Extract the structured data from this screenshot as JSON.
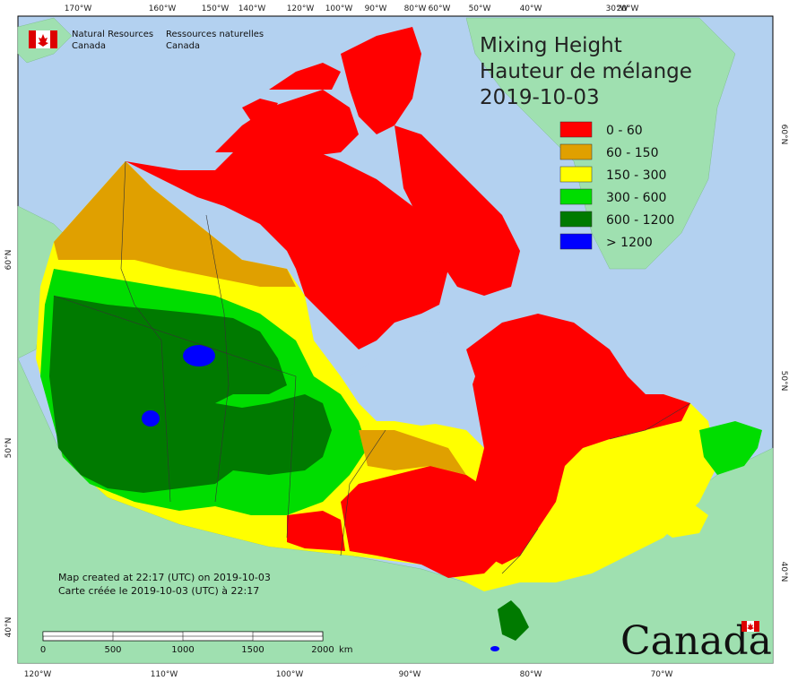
{
  "title": {
    "line1": "Mixing Height",
    "line2": "Hauteur de mélange",
    "date": "2019-10-03"
  },
  "agency": {
    "en_line1": "Natural Resources",
    "en_line2": "Canada",
    "fr_line1": "Ressources naturelles",
    "fr_line2": "Canada"
  },
  "legend": [
    {
      "label": "0 - 60",
      "color": "#ff0000"
    },
    {
      "label": "60 - 150",
      "color": "#e0a000"
    },
    {
      "label": "150 - 300",
      "color": "#ffff00"
    },
    {
      "label": "300 - 600",
      "color": "#00dd00"
    },
    {
      "label": "600 - 1200",
      "color": "#007a00"
    },
    {
      "label": "> 1200",
      "color": "#0000ff"
    }
  ],
  "note": {
    "en": "Map created at 22:17 (UTC) on 2019-10-03",
    "fr": "Carte créée le 2019-10-03 (UTC) à 22:17"
  },
  "scalebar": {
    "labels": [
      "0",
      "500",
      "1000",
      "1500",
      "2000"
    ],
    "unit": "km"
  },
  "wordmark": "Canada",
  "axes": {
    "top_lon": [
      "170°W",
      "160°W",
      "150°W",
      "140°W",
      "120°W",
      "100°W",
      "90°W",
      "80°W",
      "60°W",
      "50°W",
      "40°W",
      "30°W",
      "20°W"
    ],
    "bottom_lon": [
      "120°W",
      "110°W",
      "100°W",
      "90°W",
      "80°W",
      "70°W"
    ],
    "left_lat": [
      "60°N",
      "50°N",
      "40°N"
    ],
    "right_lat": [
      "60°N",
      "50°N",
      "40°N"
    ]
  },
  "colors": {
    "ocean": "#b3d1f0",
    "land_outside": "#9fe0b0"
  }
}
